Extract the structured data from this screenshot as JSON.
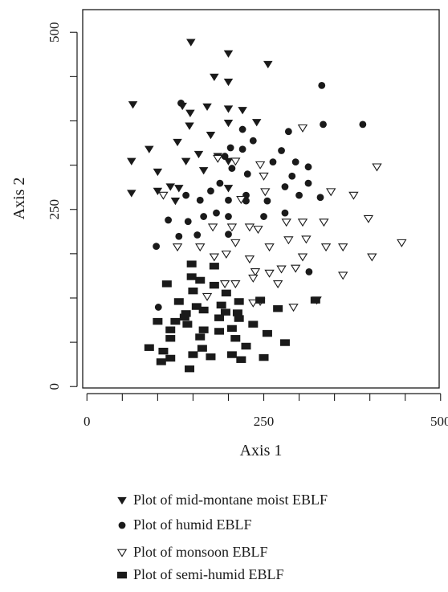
{
  "chart_data": {
    "type": "scatter",
    "title": "",
    "xlabel": "Axis 1",
    "ylabel": "Axis 2",
    "xlim": [
      -6,
      498
    ],
    "ylim": [
      -2,
      532
    ],
    "x_ticks": [
      0,
      250,
      500
    ],
    "y_ticks": [
      0,
      250,
      500
    ],
    "grid": false,
    "legend_placement": "bottom",
    "series": [
      {
        "name": "Plot of mid-montane moist EBLF",
        "marker": "triangle-down-filled",
        "color": "#1a1a1a",
        "points": [
          [
            147,
            486
          ],
          [
            200,
            470
          ],
          [
            256,
            455
          ],
          [
            180,
            437
          ],
          [
            200,
            430
          ],
          [
            65,
            398
          ],
          [
            135,
            396
          ],
          [
            170,
            395
          ],
          [
            200,
            392
          ],
          [
            220,
            390
          ],
          [
            146,
            386
          ],
          [
            240,
            373
          ],
          [
            200,
            372
          ],
          [
            145,
            368
          ],
          [
            175,
            355
          ],
          [
            128,
            345
          ],
          [
            88,
            335
          ],
          [
            158,
            328
          ],
          [
            185,
            325
          ],
          [
            200,
            318
          ],
          [
            63,
            318
          ],
          [
            140,
            318
          ],
          [
            100,
            303
          ],
          [
            165,
            305
          ],
          [
            118,
            282
          ],
          [
            63,
            273
          ],
          [
            100,
            276
          ],
          [
            130,
            280
          ],
          [
            200,
            280
          ],
          [
            125,
            262
          ]
        ]
      },
      {
        "name": "Plot of humid EBLF",
        "marker": "circle-filled",
        "color": "#1a1a1a",
        "points": [
          [
            133,
            400
          ],
          [
            332,
            425
          ],
          [
            390,
            370
          ],
          [
            334,
            370
          ],
          [
            220,
            363
          ],
          [
            235,
            347
          ],
          [
            285,
            360
          ],
          [
            203,
            337
          ],
          [
            220,
            335
          ],
          [
            275,
            333
          ],
          [
            195,
            325
          ],
          [
            263,
            317
          ],
          [
            295,
            317
          ],
          [
            313,
            310
          ],
          [
            205,
            308
          ],
          [
            290,
            297
          ],
          [
            227,
            300
          ],
          [
            313,
            287
          ],
          [
            188,
            287
          ],
          [
            280,
            282
          ],
          [
            140,
            270
          ],
          [
            175,
            276
          ],
          [
            225,
            270
          ],
          [
            300,
            270
          ],
          [
            330,
            267
          ],
          [
            200,
            263
          ],
          [
            160,
            263
          ],
          [
            225,
            262
          ],
          [
            255,
            262
          ],
          [
            183,
            245
          ],
          [
            143,
            233
          ],
          [
            115,
            235
          ],
          [
            165,
            240
          ],
          [
            200,
            240
          ],
          [
            280,
            245
          ],
          [
            250,
            240
          ],
          [
            130,
            212
          ],
          [
            156,
            214
          ],
          [
            200,
            215
          ],
          [
            98,
            198
          ],
          [
            314,
            162
          ],
          [
            101,
            112
          ]
        ]
      },
      {
        "name": "Plot of monsoon EBLF",
        "marker": "triangle-down-open",
        "color": "#1a1a1a",
        "points": [
          [
            305,
            365
          ],
          [
            410,
            310
          ],
          [
            185,
            322
          ],
          [
            210,
            318
          ],
          [
            245,
            313
          ],
          [
            250,
            297
          ],
          [
            108,
            270
          ],
          [
            218,
            264
          ],
          [
            252,
            275
          ],
          [
            377,
            270
          ],
          [
            345,
            275
          ],
          [
            398,
            237
          ],
          [
            282,
            232
          ],
          [
            305,
            232
          ],
          [
            335,
            232
          ],
          [
            178,
            225
          ],
          [
            205,
            225
          ],
          [
            230,
            225
          ],
          [
            242,
            222
          ],
          [
            310,
            208
          ],
          [
            285,
            207
          ],
          [
            210,
            203
          ],
          [
            128,
            197
          ],
          [
            160,
            197
          ],
          [
            258,
            197
          ],
          [
            338,
            197
          ],
          [
            362,
            197
          ],
          [
            445,
            203
          ],
          [
            403,
            183
          ],
          [
            180,
            183
          ],
          [
            197,
            187
          ],
          [
            230,
            180
          ],
          [
            305,
            183
          ],
          [
            258,
            160
          ],
          [
            275,
            166
          ],
          [
            238,
            162
          ],
          [
            295,
            167
          ],
          [
            362,
            157
          ],
          [
            270,
            145
          ],
          [
            235,
            153
          ],
          [
            210,
            145
          ],
          [
            195,
            145
          ],
          [
            235,
            118
          ],
          [
            245,
            120
          ],
          [
            292,
            112
          ],
          [
            325,
            122
          ],
          [
            170,
            127
          ]
        ]
      },
      {
        "name": "Plot of semi-humid EBLF",
        "marker": "rect-filled",
        "color": "#1a1a1a",
        "points": [
          [
            148,
            173
          ],
          [
            180,
            170
          ],
          [
            148,
            155
          ],
          [
            160,
            150
          ],
          [
            113,
            145
          ],
          [
            180,
            143
          ],
          [
            150,
            135
          ],
          [
            197,
            132
          ],
          [
            130,
            120
          ],
          [
            215,
            120
          ],
          [
            190,
            115
          ],
          [
            245,
            122
          ],
          [
            155,
            113
          ],
          [
            165,
            108
          ],
          [
            196,
            105
          ],
          [
            213,
            104
          ],
          [
            270,
            110
          ],
          [
            323,
            122
          ],
          [
            140,
            103
          ],
          [
            138,
            98
          ],
          [
            187,
            97
          ],
          [
            215,
            96
          ],
          [
            100,
            92
          ],
          [
            125,
            92
          ],
          [
            142,
            88
          ],
          [
            235,
            88
          ],
          [
            118,
            80
          ],
          [
            165,
            80
          ],
          [
            187,
            78
          ],
          [
            205,
            82
          ],
          [
            255,
            75
          ],
          [
            160,
            70
          ],
          [
            118,
            68
          ],
          [
            210,
            68
          ],
          [
            225,
            57
          ],
          [
            280,
            62
          ],
          [
            163,
            54
          ],
          [
            88,
            55
          ],
          [
            108,
            50
          ],
          [
            150,
            45
          ],
          [
            205,
            45
          ],
          [
            175,
            42
          ],
          [
            118,
            40
          ],
          [
            250,
            41
          ],
          [
            218,
            38
          ],
          [
            105,
            35
          ],
          [
            145,
            25
          ]
        ]
      }
    ]
  }
}
